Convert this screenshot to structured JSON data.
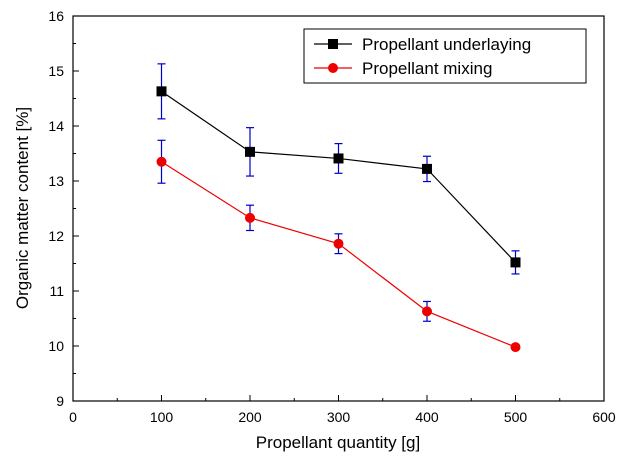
{
  "chart_data": {
    "type": "line",
    "xlabel": "Propellant quantity [g]",
    "ylabel": "Organic matter content [%]",
    "xlim": [
      0,
      600
    ],
    "ylim": [
      9,
      16
    ],
    "x_ticks": [
      "0",
      "100",
      "200",
      "300",
      "400",
      "500",
      "600"
    ],
    "y_ticks": [
      "9",
      "10",
      "11",
      "12",
      "13",
      "14",
      "15",
      "16"
    ],
    "grid": false,
    "legend_position": "top-right",
    "series": [
      {
        "name": "Propellant underlaying",
        "color": "#000000",
        "errorbar_color": "#0000cc",
        "marker": "square",
        "x": [
          100,
          200,
          300,
          400,
          500
        ],
        "y": [
          14.63,
          13.53,
          13.41,
          13.22,
          11.52
        ],
        "error": [
          0.5,
          0.44,
          0.27,
          0.23,
          0.21
        ]
      },
      {
        "name": "Propellant mixing",
        "color": "#ee0000",
        "errorbar_color": "#0000cc",
        "marker": "circle",
        "x": [
          100,
          200,
          300,
          400,
          500
        ],
        "y": [
          13.35,
          12.33,
          11.86,
          10.63,
          9.98
        ],
        "error": [
          0.39,
          0.23,
          0.18,
          0.18,
          0.04
        ]
      }
    ]
  }
}
